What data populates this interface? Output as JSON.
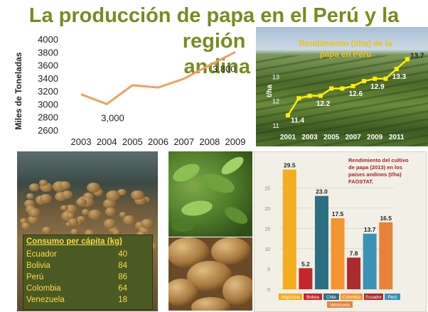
{
  "title": {
    "line1": "La producción de papa en el Perú y la región",
    "line2": "andina"
  },
  "production_chart": {
    "ylabel": "Miles de Toneladas",
    "yticks": [
      "2600",
      "2800",
      "3000",
      "3200",
      "3400",
      "3600",
      "3800",
      "4000"
    ],
    "xticks": [
      "2003",
      "2004",
      "2005",
      "2006",
      "2007",
      "2008",
      "2009"
    ],
    "labels": {
      "low": "3,000",
      "high": "3,800"
    },
    "color": "#f0a060"
  },
  "yield_chart": {
    "title_line1": "Rendimiento (t/ha) de la",
    "title_line2": "papa en Peru",
    "ylabel": "t/ha",
    "yticks": [
      "11",
      "12",
      "13"
    ],
    "xticks": [
      "2001",
      "2003",
      "2005",
      "2007",
      "2009",
      "2011"
    ],
    "point_labels": [
      "11.4",
      "12.2",
      "12.6",
      "12.9",
      "13.3",
      "13.7"
    ],
    "color": "#ffee00"
  },
  "consumption": {
    "header": "Consumo per cápita (kg)",
    "rows": [
      {
        "country": "Ecuador",
        "value": "40"
      },
      {
        "country": "Bolivia",
        "value": "84"
      },
      {
        "country": "Perú",
        "value": "86"
      },
      {
        "country": "Colombia",
        "value": "64"
      },
      {
        "country": "Venezuela",
        "value": "18"
      }
    ]
  },
  "andean_chart": {
    "title_lines": [
      "Rendimiento del cultivo",
      "de papa (2013) en los",
      "países andinos (t/ha)",
      "FAOSTAT."
    ],
    "yticks": [
      "0",
      "5",
      "10",
      "15",
      "20",
      "25"
    ],
    "legend": [
      "Argentina",
      "Bolivia",
      "Chile",
      "Colombia",
      "Ecuador",
      "Perú",
      "Venezuela"
    ]
  },
  "chart_data": [
    {
      "type": "line",
      "title": "",
      "xlabel": "",
      "ylabel": "Miles de Toneladas",
      "x": [
        2003,
        2004,
        2005,
        2006,
        2007,
        2008,
        2009
      ],
      "series": [
        {
          "values": [
            3150,
            3000,
            3290,
            3255,
            3390,
            3600,
            3800
          ]
        }
      ],
      "ylim": [
        2600,
        4000
      ],
      "grid": false
    },
    {
      "type": "line",
      "title": "Rendimiento (t/ha) de la papa en Peru",
      "xlabel": "",
      "ylabel": "t/ha",
      "x": [
        2001,
        2002,
        2003,
        2004,
        2005,
        2006,
        2007,
        2008,
        2009,
        2010,
        2011,
        2012
      ],
      "series": [
        {
          "values": [
            11.4,
            12.1,
            12.2,
            12.2,
            12.5,
            12.5,
            12.6,
            12.8,
            12.9,
            12.9,
            13.3,
            13.7
          ]
        }
      ],
      "ylim": [
        11,
        14
      ],
      "grid": false
    },
    {
      "type": "bar",
      "title": "Rendimiento del cultivo de papa (2013) en los países andinos (t/ha) FAOSTAT.",
      "categories": [
        "Argentina",
        "Bolivia",
        "Chile",
        "Colombia",
        "Ecuador",
        "Perú",
        "Venezuela"
      ],
      "values": [
        29.5,
        5.2,
        23.0,
        17.5,
        7.8,
        13.7,
        16.5
      ],
      "value_labels": [
        "29.5",
        "5.2",
        "23.0",
        "17.5",
        "7.8",
        "13.7",
        "16.5"
      ],
      "colors": [
        "#f3ad1f",
        "#c2282d",
        "#2d6f82",
        "#f39432",
        "#aa2b2e",
        "#3a93b5",
        "#e8823a"
      ],
      "ylim": [
        0,
        30
      ],
      "grid": true
    }
  ]
}
